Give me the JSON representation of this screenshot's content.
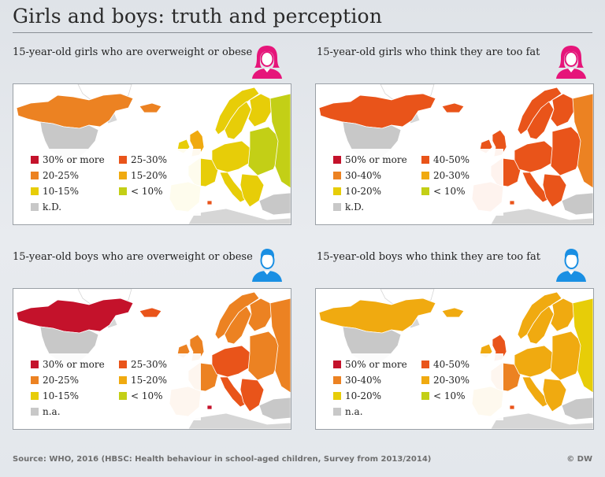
{
  "title": "Girls and boys: truth and perception",
  "panels": [
    {
      "title": "15-year-old girls who are overweight or obese",
      "gender": "female",
      "legend": [
        "30% or more",
        "25-30%",
        "20-25%",
        "15-20%",
        "10-15%",
        "< 10%",
        "k.D."
      ],
      "legend_colors": [
        "#c4122b",
        "#e9541a",
        "#ec8222",
        "#f0aa10",
        "#e7cd08",
        "#c3cf16",
        "#c8c8c8"
      ],
      "regions": {
        "canada": "#ec8222",
        "usa": "#c8c8c8",
        "greenland": "#ffffff",
        "iceland": "#ec8222",
        "norway": "#e7cd08",
        "sweden": "#e7cd08",
        "finland": "#e7cd08",
        "uk": "#f0aa10",
        "ireland": "#e7cd08",
        "france": "#e7cd08",
        "iberia": "#e7cd08",
        "central": "#e7cd08",
        "italy": "#e7cd08",
        "east": "#c3cf16",
        "russia": "#c3cf16",
        "balkans": "#e7cd08",
        "turkey": "#c8c8c8",
        "malta": "#e9541a"
      }
    },
    {
      "title": "15-year-old girls who think they are too fat",
      "gender": "female",
      "legend": [
        "50% or more",
        "40-50%",
        "30-40%",
        "20-30%",
        "10-20%",
        "< 10%",
        "k.D."
      ],
      "legend_colors": [
        "#c4122b",
        "#e9541a",
        "#ec8222",
        "#f0aa10",
        "#e7cd08",
        "#c3cf16",
        "#c8c8c8"
      ],
      "regions": {
        "canada": "#e9541a",
        "usa": "#c8c8c8",
        "greenland": "#ffffff",
        "iceland": "#e9541a",
        "norway": "#e9541a",
        "sweden": "#e9541a",
        "finland": "#e9541a",
        "uk": "#e9541a",
        "ireland": "#e9541a",
        "france": "#e9541a",
        "iberia": "#e9541a",
        "central": "#e9541a",
        "italy": "#e9541a",
        "east": "#e9541a",
        "russia": "#ec8222",
        "balkans": "#e9541a",
        "turkey": "#c8c8c8",
        "malta": "#e9541a"
      }
    },
    {
      "title": "15-year-old boys who are overweight or obese",
      "gender": "male",
      "legend": [
        "30% or more",
        "25-30%",
        "20-25%",
        "15-20%",
        "10-15%",
        "< 10%",
        "n.a."
      ],
      "legend_colors": [
        "#c4122b",
        "#e9541a",
        "#ec8222",
        "#f0aa10",
        "#e7cd08",
        "#c3cf16",
        "#c8c8c8"
      ],
      "regions": {
        "canada": "#c4122b",
        "usa": "#c8c8c8",
        "greenland": "#ffffff",
        "iceland": "#e9541a",
        "norway": "#ec8222",
        "sweden": "#ec8222",
        "finland": "#ec8222",
        "uk": "#ec8222",
        "ireland": "#ec8222",
        "france": "#ec8222",
        "iberia": "#ec8222",
        "central": "#e9541a",
        "italy": "#e9541a",
        "east": "#ec8222",
        "russia": "#ec8222",
        "balkans": "#e9541a",
        "turkey": "#c8c8c8",
        "malta": "#c4122b"
      }
    },
    {
      "title": "15-year-old boys who think they are too fat",
      "gender": "male",
      "legend": [
        "50% or more",
        "40-50%",
        "30-40%",
        "20-30%",
        "10-20%",
        "< 10%",
        "n.a."
      ],
      "legend_colors": [
        "#c4122b",
        "#e9541a",
        "#ec8222",
        "#f0aa10",
        "#e7cd08",
        "#c3cf16",
        "#c8c8c8"
      ],
      "regions": {
        "canada": "#f0aa10",
        "usa": "#c8c8c8",
        "greenland": "#ffffff",
        "iceland": "#f0aa10",
        "norway": "#f0aa10",
        "sweden": "#f0aa10",
        "finland": "#f0aa10",
        "uk": "#e9541a",
        "ireland": "#f0aa10",
        "france": "#ec8222",
        "iberia": "#f0aa10",
        "central": "#f0aa10",
        "italy": "#f0aa10",
        "east": "#f0aa10",
        "russia": "#e7cd08",
        "balkans": "#f0aa10",
        "turkey": "#c8c8c8",
        "malta": "#e9541a"
      }
    }
  ],
  "icon_colors": {
    "female": "#e6157a",
    "male": "#1a8fe3"
  },
  "source": "Source: WHO, 2016 (HBSC: Health behaviour in school-aged children, Survey from 2013/2014)",
  "credit": "© DW"
}
